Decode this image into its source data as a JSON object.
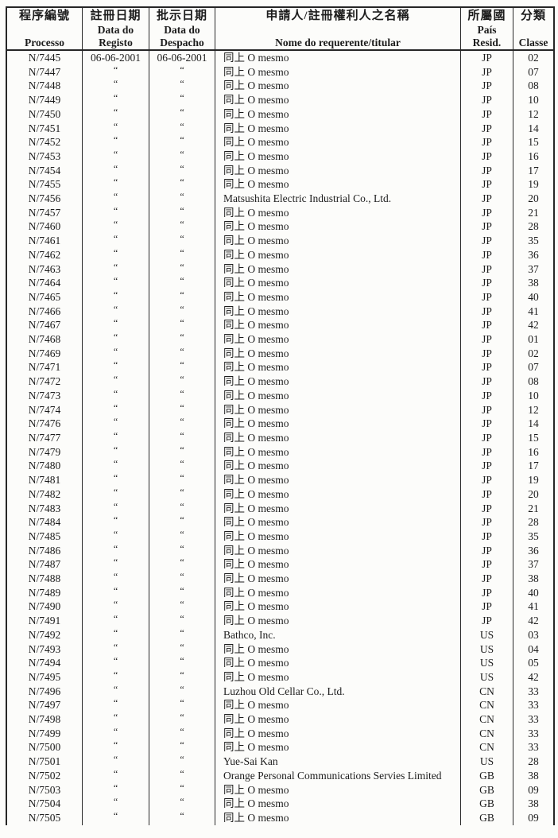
{
  "document": {
    "type": "scanned-gazette-table",
    "colors": {
      "paper": "#fcfcfa",
      "ink": "#1c1c1c",
      "border": "#262626"
    }
  },
  "table": {
    "header": {
      "processo": {
        "zh": "程序編號",
        "pt": "Processo"
      },
      "registo": {
        "zh": "註冊日期",
        "pt1": "Data do",
        "pt2": "Registo"
      },
      "despacho": {
        "zh": "批示日期",
        "pt1": "Data do",
        "pt2": "Despacho"
      },
      "nome": {
        "zh": "申請人/註冊權利人之名稱",
        "pt": "Nome do requerente/titular"
      },
      "pais": {
        "zh": "所屬國",
        "pt1": "País",
        "pt2": "Resid."
      },
      "classe": {
        "zh": "分類",
        "pt": "Classe"
      }
    },
    "column_keys": [
      "processo",
      "registo",
      "despacho",
      "nome",
      "pais",
      "classe"
    ],
    "ditto_mark": "“",
    "rows": [
      [
        "N/7445",
        "06-06-2001",
        "06-06-2001",
        "同上 O mesmo",
        "JP",
        "02"
      ],
      [
        "N/7447",
        "“",
        "“",
        "同上 O mesmo",
        "JP",
        "07"
      ],
      [
        "N/7448",
        "“",
        "“",
        "同上 O mesmo",
        "JP",
        "08"
      ],
      [
        "N/7449",
        "“",
        "“",
        "同上 O mesmo",
        "JP",
        "10"
      ],
      [
        "N/7450",
        "“",
        "“",
        "同上 O mesmo",
        "JP",
        "12"
      ],
      [
        "N/7451",
        "“",
        "“",
        "同上 O mesmo",
        "JP",
        "14"
      ],
      [
        "N/7452",
        "“",
        "“",
        "同上 O mesmo",
        "JP",
        "15"
      ],
      [
        "N/7453",
        "“",
        "“",
        "同上 O mesmo",
        "JP",
        "16"
      ],
      [
        "N/7454",
        "“",
        "“",
        "同上 O mesmo",
        "JP",
        "17"
      ],
      [
        "N/7455",
        "“",
        "“",
        "同上 O mesmo",
        "JP",
        "19"
      ],
      [
        "N/7456",
        "“",
        "“",
        "Matsushita Electric Industrial Co., Ltd.",
        "JP",
        "20"
      ],
      [
        "N/7457",
        "“",
        "“",
        "同上 O mesmo",
        "JP",
        "21"
      ],
      [
        "N/7460",
        "“",
        "“",
        "同上 O mesmo",
        "JP",
        "28"
      ],
      [
        "N/7461",
        "“",
        "“",
        "同上 O mesmo",
        "JP",
        "35"
      ],
      [
        "N/7462",
        "“",
        "“",
        "同上 O mesmo",
        "JP",
        "36"
      ],
      [
        "N/7463",
        "“",
        "“",
        "同上 O mesmo",
        "JP",
        "37"
      ],
      [
        "N/7464",
        "“",
        "“",
        "同上 O mesmo",
        "JP",
        "38"
      ],
      [
        "N/7465",
        "“",
        "“",
        "同上 O mesmo",
        "JP",
        "40"
      ],
      [
        "N/7466",
        "“",
        "“",
        "同上 O mesmo",
        "JP",
        "41"
      ],
      [
        "N/7467",
        "“",
        "“",
        "同上 O mesmo",
        "JP",
        "42"
      ],
      [
        "N/7468",
        "“",
        "“",
        "同上 O mesmo",
        "JP",
        "01"
      ],
      [
        "N/7469",
        "“",
        "“",
        "同上 O mesmo",
        "JP",
        "02"
      ],
      [
        "N/7471",
        "“",
        "“",
        "同上 O mesmo",
        "JP",
        "07"
      ],
      [
        "N/7472",
        "“",
        "“",
        "同上 O mesmo",
        "JP",
        "08"
      ],
      [
        "N/7473",
        "“",
        "“",
        "同上 O mesmo",
        "JP",
        "10"
      ],
      [
        "N/7474",
        "“",
        "“",
        "同上 O mesmo",
        "JP",
        "12"
      ],
      [
        "N/7476",
        "“",
        "“",
        "同上 O mesmo",
        "JP",
        "14"
      ],
      [
        "N/7477",
        "“",
        "“",
        "同上 O mesmo",
        "JP",
        "15"
      ],
      [
        "N/7479",
        "“",
        "“",
        "同上 O mesmo",
        "JP",
        "16"
      ],
      [
        "N/7480",
        "“",
        "“",
        "同上 O mesmo",
        "JP",
        "17"
      ],
      [
        "N/7481",
        "“",
        "“",
        "同上 O mesmo",
        "JP",
        "19"
      ],
      [
        "N/7482",
        "“",
        "“",
        "同上 O mesmo",
        "JP",
        "20"
      ],
      [
        "N/7483",
        "“",
        "“",
        "同上 O mesmo",
        "JP",
        "21"
      ],
      [
        "N/7484",
        "“",
        "“",
        "同上 O mesmo",
        "JP",
        "28"
      ],
      [
        "N/7485",
        "“",
        "“",
        "同上 O mesmo",
        "JP",
        "35"
      ],
      [
        "N/7486",
        "“",
        "“",
        "同上 O mesmo",
        "JP",
        "36"
      ],
      [
        "N/7487",
        "“",
        "“",
        "同上 O mesmo",
        "JP",
        "37"
      ],
      [
        "N/7488",
        "“",
        "“",
        "同上 O mesmo",
        "JP",
        "38"
      ],
      [
        "N/7489",
        "“",
        "“",
        "同上 O mesmo",
        "JP",
        "40"
      ],
      [
        "N/7490",
        "“",
        "“",
        "同上 O mesmo",
        "JP",
        "41"
      ],
      [
        "N/7491",
        "“",
        "“",
        "同上 O mesmo",
        "JP",
        "42"
      ],
      [
        "N/7492",
        "“",
        "“",
        "Bathco, Inc.",
        "US",
        "03"
      ],
      [
        "N/7493",
        "“",
        "“",
        "同上 O mesmo",
        "US",
        "04"
      ],
      [
        "N/7494",
        "“",
        "“",
        "同上 O mesmo",
        "US",
        "05"
      ],
      [
        "N/7495",
        "“",
        "“",
        "同上 O mesmo",
        "US",
        "42"
      ],
      [
        "N/7496",
        "“",
        "“",
        "Luzhou Old Cellar Co., Ltd.",
        "CN",
        "33"
      ],
      [
        "N/7497",
        "“",
        "“",
        "同上 O mesmo",
        "CN",
        "33"
      ],
      [
        "N/7498",
        "“",
        "“",
        "同上 O mesmo",
        "CN",
        "33"
      ],
      [
        "N/7499",
        "“",
        "“",
        "同上 O mesmo",
        "CN",
        "33"
      ],
      [
        "N/7500",
        "“",
        "“",
        "同上 O mesmo",
        "CN",
        "33"
      ],
      [
        "N/7501",
        "“",
        "“",
        "Yue-Sai Kan",
        "US",
        "28"
      ],
      [
        "N/7502",
        "“",
        "“",
        "Orange Personal Communications Servies Limited",
        "GB",
        "38"
      ],
      [
        "N/7503",
        "“",
        "“",
        "同上 O mesmo",
        "GB",
        "09"
      ],
      [
        "N/7504",
        "“",
        "“",
        "同上 O mesmo",
        "GB",
        "38"
      ],
      [
        "N/7505",
        "“",
        "“",
        "同上 O mesmo",
        "GB",
        "09"
      ]
    ]
  }
}
